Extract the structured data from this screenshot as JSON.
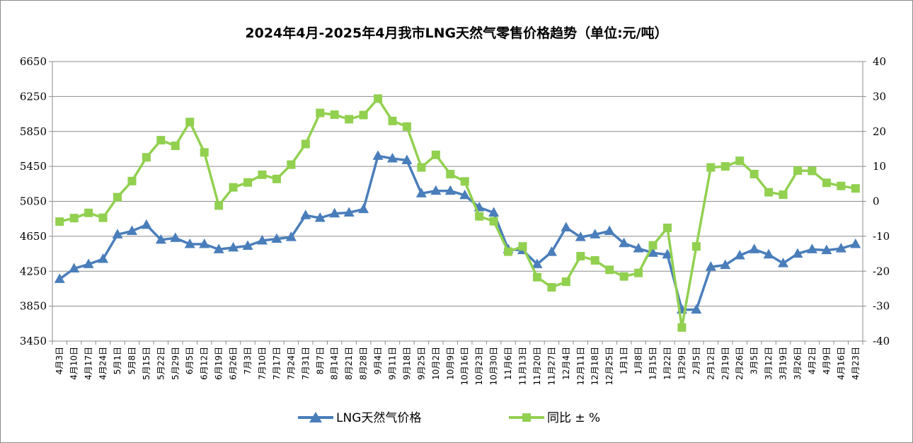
{
  "chart_data": {
    "type": "line",
    "title": "2024年4月-2025年4月我市LNG天然气零售价格趋势（单位:元/吨）",
    "categories": [
      "4月3日",
      "4月10日",
      "4月17日",
      "4月24日",
      "5月1日",
      "5月8日",
      "5月15日",
      "5月22日",
      "5月29日",
      "6月5日",
      "6月12日",
      "6月19日",
      "6月26日",
      "7月3日",
      "7月10日",
      "7月17日",
      "7月24日",
      "7月31日",
      "8月7日",
      "8月14日",
      "8月21日",
      "8月28日",
      "9月4日",
      "9月11日",
      "9月18日",
      "9月25日",
      "10月2日",
      "10月9日",
      "10月16日",
      "10月23日",
      "10月30日",
      "11月6日",
      "11月13日",
      "11月20日",
      "11月27日",
      "12月4日",
      "12月11日",
      "12月18日",
      "12月25日",
      "1月1日",
      "1月8日",
      "1月15日",
      "1月22日",
      "1月29日",
      "2月5日",
      "2月12日",
      "2月19日",
      "2月26日",
      "3月5日",
      "3月12日",
      "3月19日",
      "3月26日",
      "4月2日",
      "4月9日",
      "4月16日",
      "4月23日"
    ],
    "series": [
      {
        "name": "LNG天然气价格",
        "axis": "left",
        "color": "#4a7ebb",
        "marker": "triangle",
        "values": [
          4160,
          4280,
          4330,
          4390,
          4670,
          4710,
          4780,
          4610,
          4630,
          4560,
          4560,
          4500,
          4520,
          4540,
          4600,
          4620,
          4640,
          4890,
          4860,
          4910,
          4920,
          4960,
          5570,
          5540,
          5520,
          5140,
          5170,
          5170,
          5120,
          4980,
          4920,
          4500,
          4490,
          4330,
          4470,
          4750,
          4640,
          4670,
          4710,
          4570,
          4510,
          4460,
          4440,
          3810,
          3810,
          4300,
          4320,
          4430,
          4500,
          4440,
          4340,
          4450,
          4500,
          4490,
          4510,
          4560
        ]
      },
      {
        "name": "同比 ± %",
        "axis": "right",
        "color": "#92d050",
        "marker": "square",
        "values": [
          -5.8,
          -4.8,
          -3.3,
          -4.7,
          1.2,
          5.8,
          12.6,
          17.5,
          15.9,
          22.7,
          14.0,
          -1.2,
          4.0,
          5.4,
          7.6,
          6.4,
          10.5,
          16.4,
          25.3,
          24.8,
          23.5,
          24.7,
          29.4,
          23.0,
          21.4,
          9.7,
          13.3,
          7.8,
          5.7,
          -4.3,
          -5.7,
          -14.4,
          -12.9,
          -21.7,
          -24.6,
          -23.0,
          -15.7,
          -16.9,
          -19.6,
          -21.5,
          -20.5,
          -12.6,
          -7.6,
          -36.1,
          -12.9,
          9.7,
          10.0,
          11.6,
          7.8,
          2.6,
          1.9,
          8.8,
          8.7,
          5.3,
          4.4,
          3.7
        ]
      }
    ],
    "y_left": {
      "min": 3450,
      "max": 6650,
      "step": 400,
      "ticks": [
        "3450",
        "3850",
        "4250",
        "4650",
        "5050",
        "5450",
        "5850",
        "6250",
        "6650"
      ]
    },
    "y_right": {
      "min": -40,
      "max": 40,
      "step": 10,
      "ticks": [
        "-40",
        "-30",
        "-20",
        "-10",
        "0",
        "10",
        "20",
        "30",
        "40"
      ]
    },
    "grid": "horizontal",
    "legend": "bottom-center"
  }
}
